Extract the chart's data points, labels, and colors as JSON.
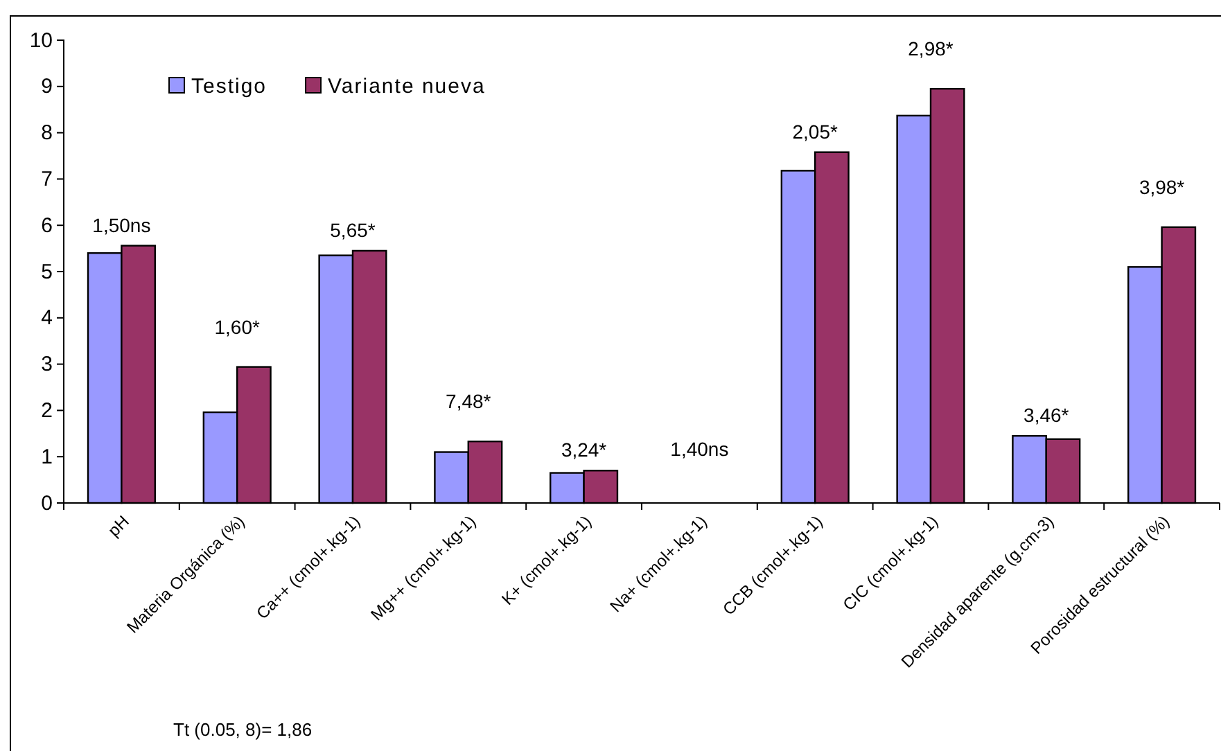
{
  "chart_data": {
    "type": "bar",
    "categories": [
      "pH",
      "Materia Orgánica (%)",
      "Ca++ (cmol+.kg-1)",
      "Mg++ (cmol+.kg-1)",
      "K+ (cmol+.kg-1)",
      "Na+ (cmol+.kg-1)",
      "CCB (cmol+.kg-1)",
      "CIC (cmol+.kg-1)",
      "Densidad aparente (g.cm-3)",
      "Porosidad estructural (%)"
    ],
    "series": [
      {
        "name": "Testigo",
        "color": "#9999ff",
        "values": [
          5.4,
          1.96,
          5.35,
          1.1,
          0.65,
          null,
          7.18,
          8.37,
          1.45,
          5.1
        ]
      },
      {
        "name": "Variante nueva",
        "color": "#993366",
        "values": [
          5.56,
          2.94,
          5.45,
          1.33,
          0.7,
          null,
          7.58,
          8.95,
          1.38,
          5.96
        ]
      }
    ],
    "ylim": [
      0,
      10
    ],
    "yticks": [
      0,
      1,
      2,
      3,
      4,
      5,
      6,
      7,
      8,
      9,
      10
    ],
    "grid": false,
    "legend": "top left",
    "annotations": [
      "1,50ns",
      "1,60*",
      "5,65*",
      "7,48*",
      "3,24*",
      "1,40ns",
      "2,05*",
      "2,98*",
      "3,46*",
      "3,98*",
      "Tt (0.05, 8)= 1,86"
    ]
  }
}
